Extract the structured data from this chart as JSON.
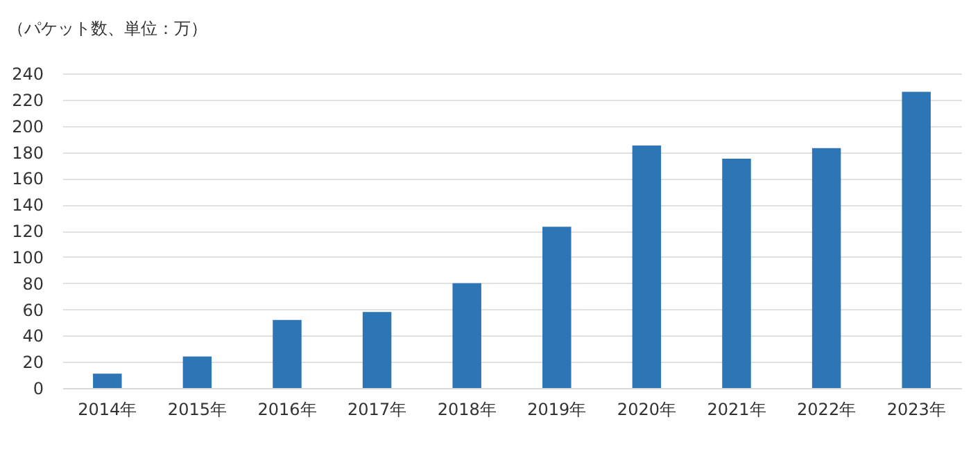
{
  "chart_data": {
    "type": "bar",
    "ylabel": "（パケット数、単位：万）",
    "categories": [
      "2014年",
      "2015年",
      "2016年",
      "2017年",
      "2018年",
      "2019年",
      "2020年",
      "2021年",
      "2022年",
      "2023年"
    ],
    "values": [
      11,
      24,
      52,
      58,
      80,
      123,
      185,
      175,
      183,
      226
    ],
    "color": "#2e75b6",
    "ylim": [
      0,
      240
    ],
    "yticks": [
      0,
      20,
      40,
      60,
      80,
      100,
      120,
      140,
      160,
      180,
      200,
      220,
      240
    ],
    "grid": "y"
  }
}
